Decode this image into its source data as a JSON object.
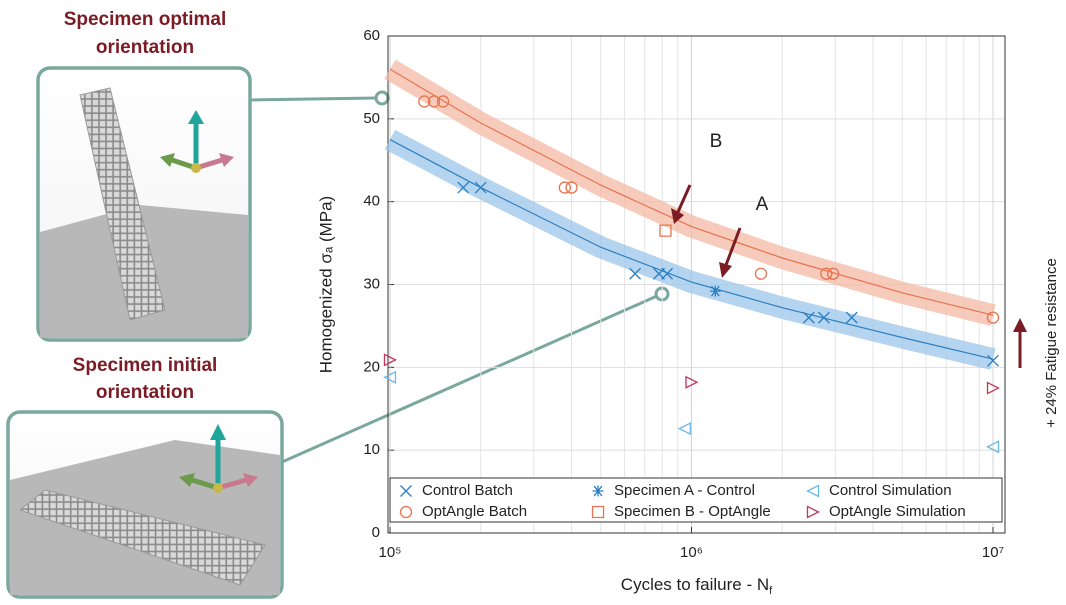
{
  "chart_data": {
    "type": "scatter",
    "x_label": "Cycles to failure - N",
    "x_label_sub": "f",
    "y_label": "Homogenized σₐ (MPa)",
    "log_x": true,
    "grid": true,
    "xlim": [
      98500,
      10960000
    ],
    "ylim": [
      0,
      60
    ],
    "xticks": [
      {
        "value": 100000,
        "label": "10⁵"
      },
      {
        "value": 1000000,
        "label": "10⁶"
      },
      {
        "value": 10000000,
        "label": "10⁷"
      }
    ],
    "yticks": [
      0,
      10,
      20,
      30,
      40,
      50,
      60
    ],
    "series": [
      {
        "name": "Control Batch",
        "marker": "x",
        "color": "#2d7fc1",
        "x": [
          175000,
          200000,
          650000,
          780000,
          830000,
          2450000,
          2750000,
          3400000,
          10000000
        ],
        "values": [
          41.7,
          41.7,
          31.3,
          31.3,
          31.3,
          26,
          26,
          26,
          20.8
        ]
      },
      {
        "name": "OptAngle Batch",
        "marker": "circle",
        "color": "#e8734f",
        "x": [
          130000,
          140000,
          150000,
          380000,
          400000,
          1700000,
          2800000,
          2950000,
          10000000
        ],
        "values": [
          52.1,
          52.1,
          52.1,
          41.7,
          41.7,
          31.3,
          31.3,
          31.3,
          26
        ]
      },
      {
        "name": "Specimen A - Control",
        "marker": "asterisk",
        "color": "#2d7fc1",
        "x": [
          1200000
        ],
        "values": [
          29.2
        ]
      },
      {
        "name": "Specimen B - OptAngle",
        "marker": "square",
        "color": "#e8734f",
        "x": [
          820000
        ],
        "values": [
          36.5
        ]
      },
      {
        "name": "Control Simulation",
        "marker": "triangle-left",
        "color": "#6bb7e8",
        "x": [
          100000,
          950000,
          10000000
        ],
        "values": [
          18.8,
          12.6,
          10.4
        ]
      },
      {
        "name": "OptAngle Simulation",
        "marker": "triangle-right",
        "color": "#c2365a",
        "x": [
          100000,
          1000000,
          10000000
        ],
        "values": [
          20.9,
          18.2,
          17.5
        ]
      }
    ],
    "fit_curves": [
      {
        "color": "#2d7fc1",
        "band_color": "#9cc6ea",
        "x": [
          100000,
          200000,
          500000,
          1000000,
          2000000,
          5000000,
          10000000
        ],
        "values": [
          47.5,
          41.7,
          34.5,
          30.3,
          27.2,
          23.6,
          21
        ]
      },
      {
        "color": "#e8734f",
        "band_color": "#f4b9a4",
        "x": [
          100000,
          200000,
          500000,
          1000000,
          2000000,
          5000000,
          10000000
        ],
        "values": [
          56,
          49.5,
          42,
          37,
          33.2,
          29,
          26.3
        ]
      }
    ],
    "annotations": [
      "B",
      "A"
    ],
    "side_note": "+ 24% Fatigue resistance"
  },
  "panels": [
    {
      "title_lines": [
        "Specimen optimal",
        "orientation"
      ]
    },
    {
      "title_lines": [
        "Specimen initial",
        "orientation"
      ]
    }
  ]
}
